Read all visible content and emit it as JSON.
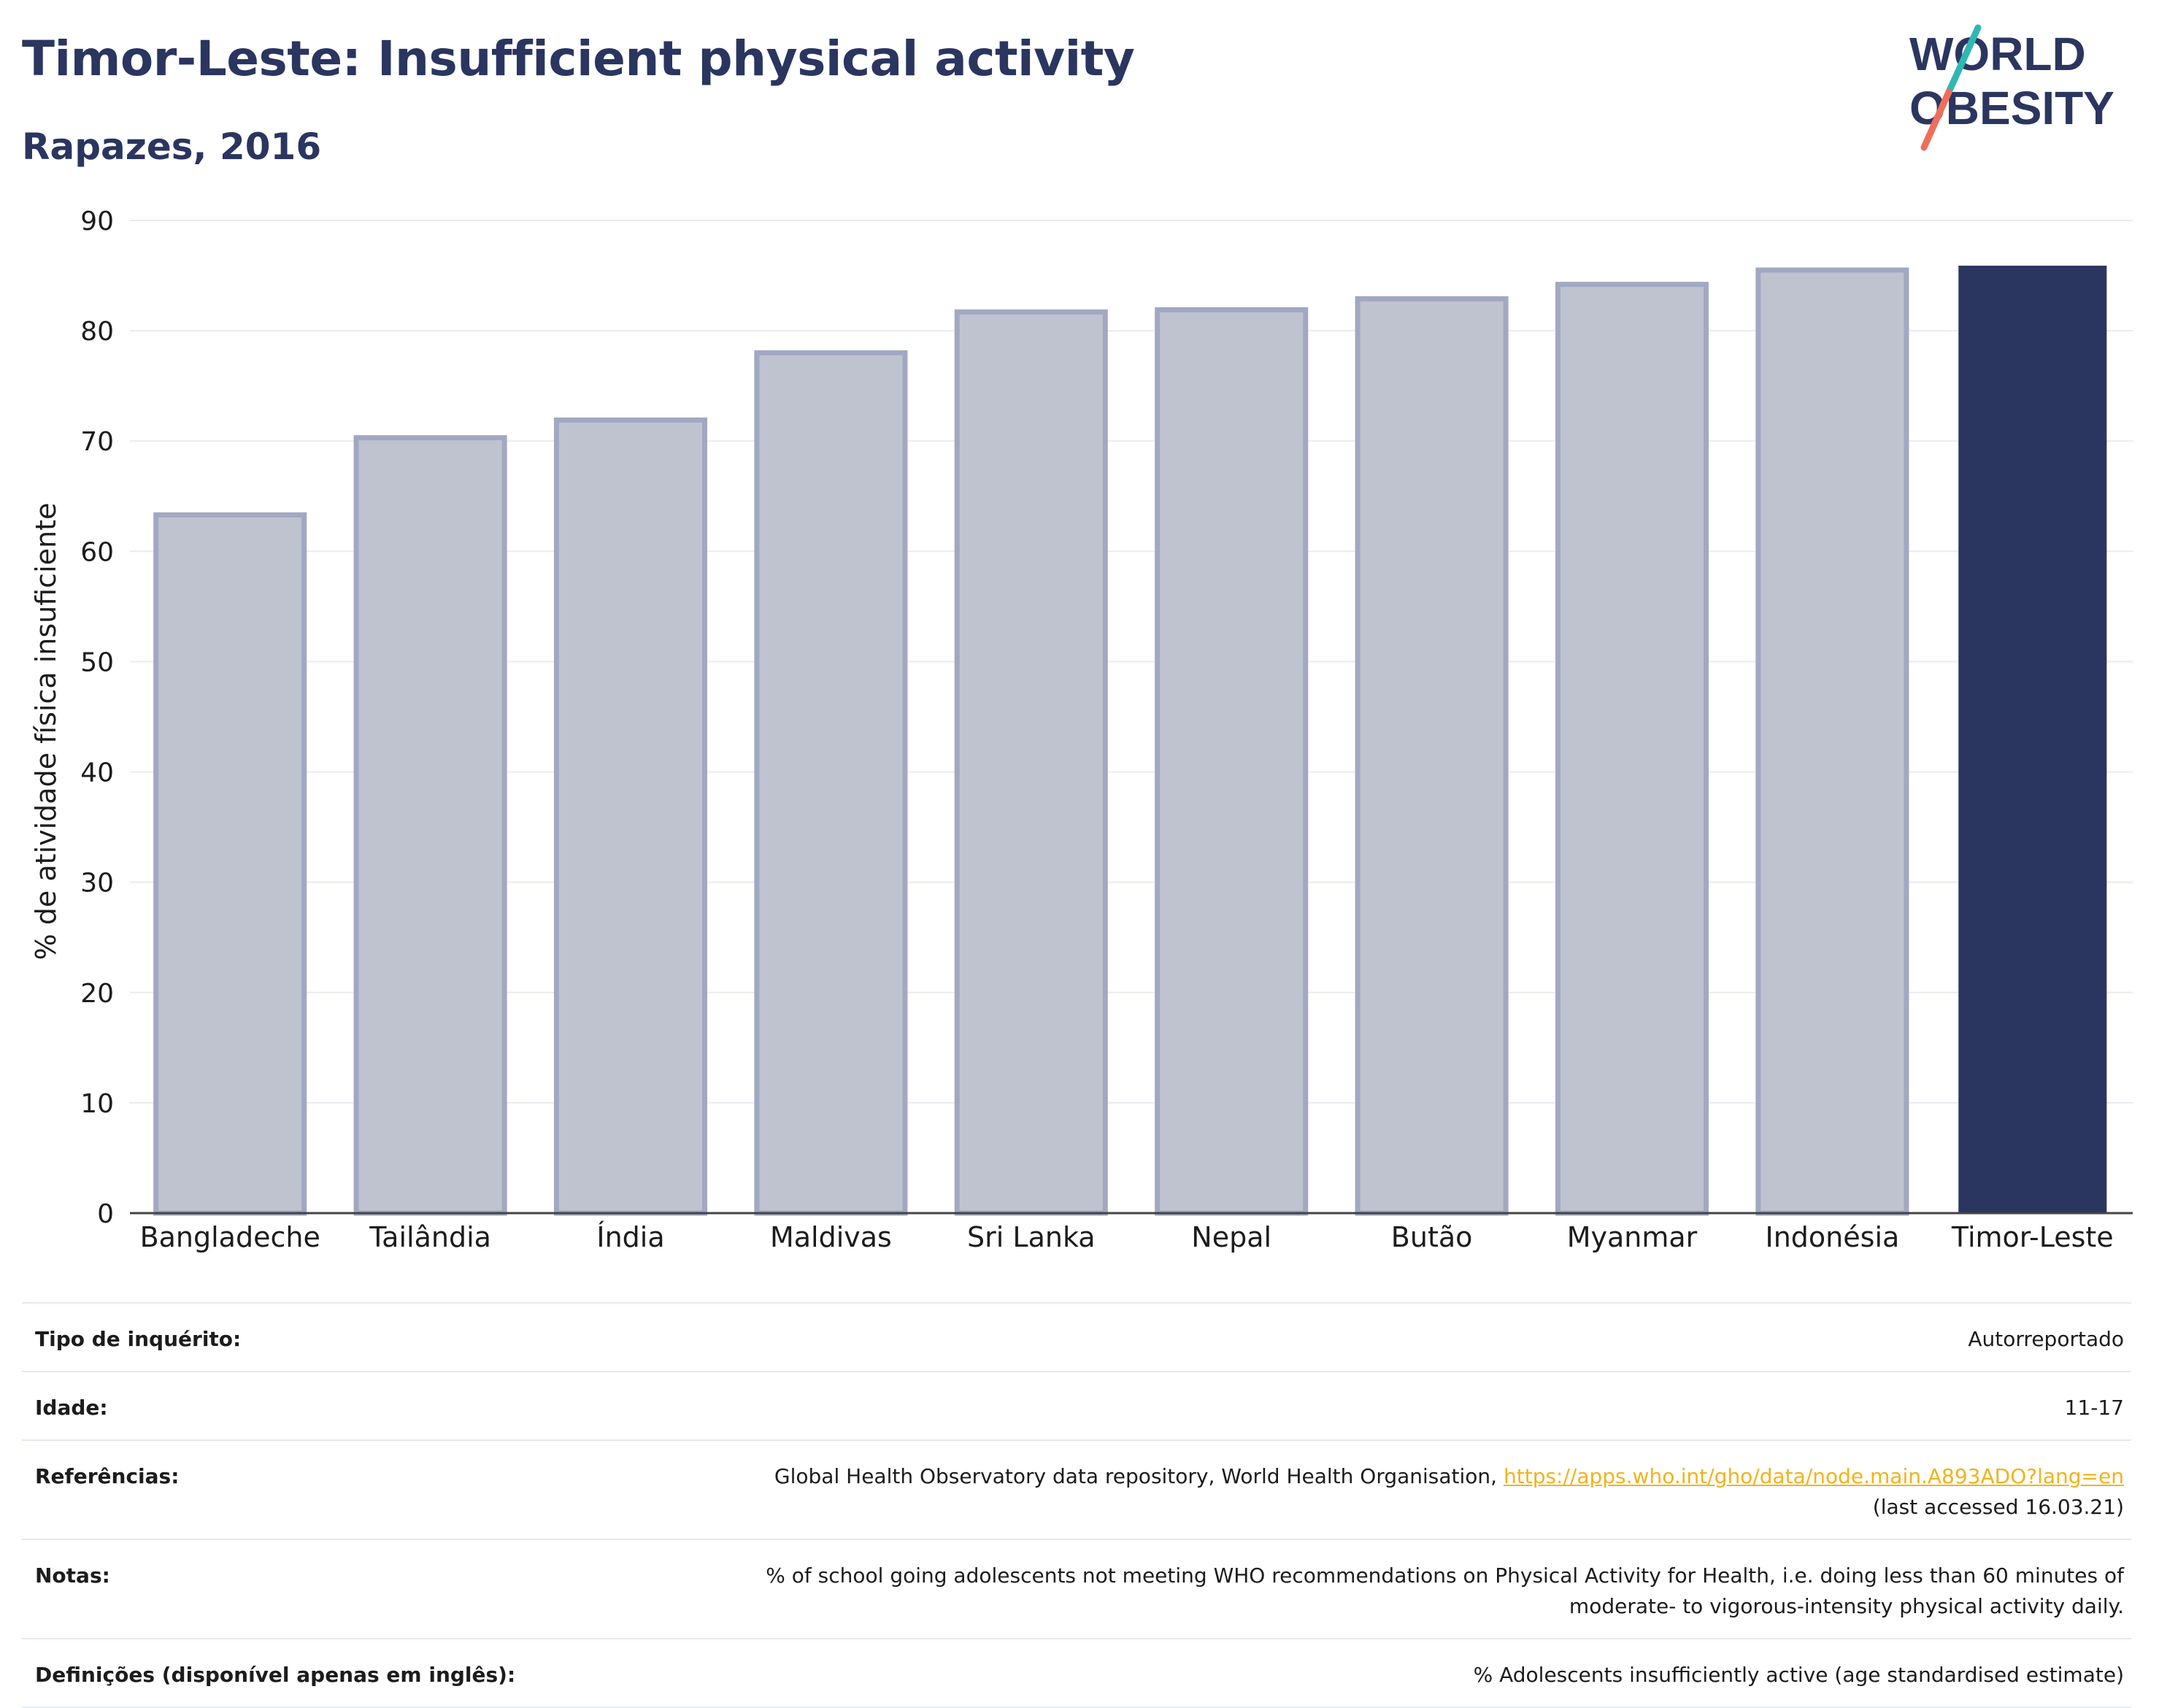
{
  "header": {
    "title": "Timor-Leste: Insufficient physical activity",
    "subtitle": "Rapazes, 2016"
  },
  "logo": {
    "line1": "WORLD",
    "line2": "OBESITY"
  },
  "colors": {
    "highlight": "#2b3660",
    "others": "#bfc3d0",
    "others_stroke": "#a1a8c2",
    "gridline": "#e9ebf1",
    "axis_text": "#1c1c1c",
    "link": "#f2b31b"
  },
  "chart_data": {
    "type": "bar",
    "title": "Timor-Leste: Insufficient physical activity",
    "subtitle": "Rapazes, 2016",
    "xlabel": "",
    "ylabel": "% de atividade física insuficiente",
    "ylim": [
      0,
      90
    ],
    "yticks": [
      0,
      10,
      20,
      30,
      40,
      50,
      60,
      70,
      80,
      90
    ],
    "grid": true,
    "categories": [
      "Bangladeche",
      "Tailândia",
      "Índia",
      "Maldivas",
      "Sri Lanka",
      "Nepal",
      "Butão",
      "Myanmar",
      "Indonésia",
      "Timor-Leste"
    ],
    "values": [
      63.3,
      70.3,
      71.9,
      78.0,
      81.7,
      81.9,
      82.9,
      84.2,
      85.5,
      85.9
    ],
    "highlight": "Timor-Leste"
  },
  "info": [
    {
      "label": "Tipo de inquérito:",
      "value": "Autorreportado"
    },
    {
      "label": "Idade:",
      "value": "11-17"
    },
    {
      "label": "Referências:",
      "value": "Global Health Observatory data repository, World Health Organisation, ",
      "link": "https://apps.who.int/gho/data/node.main.A893ADO?lang=en",
      "value2": "(last accessed 16.03.21)"
    },
    {
      "label": "Notas:",
      "value": "% of school going adolescents not meeting WHO recommendations on Physical Activity for Health, i.e. doing less than 60 minutes of",
      "value2": "moderate- to vigorous-intensity physical activity daily."
    },
    {
      "label": "Definições (disponível apenas em inglês):",
      "value": "% Adolescents insufficiently active (age standardised estimate)"
    }
  ]
}
